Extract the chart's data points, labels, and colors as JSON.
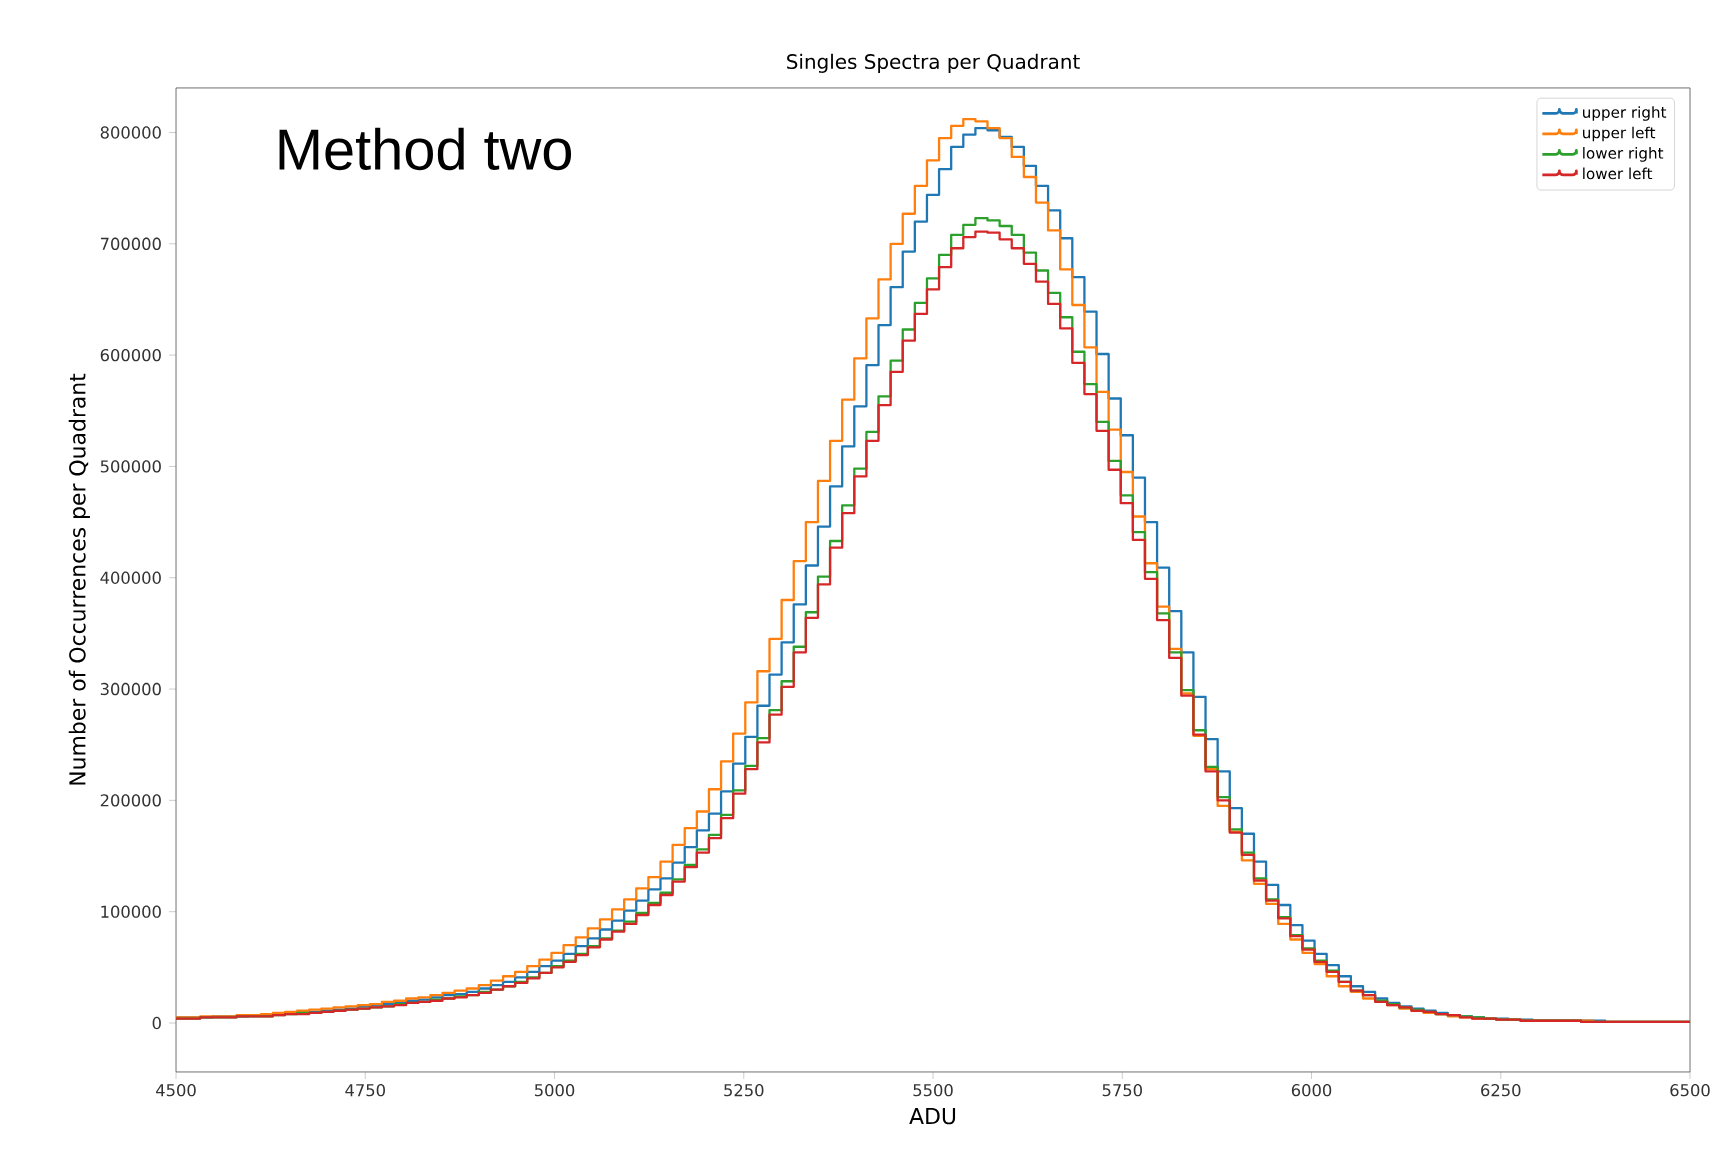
{
  "chart_data": {
    "type": "histogram",
    "title": "Singles Spectra per Quadrant",
    "xlabel": "ADU",
    "ylabel": "Number of Occurrences per Quadrant",
    "annotations": [
      "Method two"
    ],
    "xlim": [
      4500,
      6500
    ],
    "ylim": [
      -44000,
      840000
    ],
    "xticks": [
      4500,
      4750,
      5000,
      5250,
      5500,
      5750,
      6000,
      6250,
      6500
    ],
    "yticks": [
      0,
      100000,
      200000,
      300000,
      400000,
      500000,
      600000,
      700000,
      800000
    ],
    "grid": false,
    "legend": "top right",
    "bins": [
      4500,
      4516,
      4532,
      4548,
      4564,
      4580,
      4596,
      4612,
      4628,
      4644,
      4660,
      4676,
      4692,
      4708,
      4724,
      4740,
      4756,
      4772,
      4788,
      4804,
      4820,
      4836,
      4852,
      4868,
      4884,
      4900,
      4916,
      4932,
      4948,
      4964,
      4980,
      4996,
      5012,
      5028,
      5044,
      5060,
      5076,
      5092,
      5108,
      5124,
      5140,
      5156,
      5172,
      5188,
      5204,
      5220,
      5236,
      5252,
      5268,
      5284,
      5300,
      5316,
      5332,
      5348,
      5364,
      5380,
      5396,
      5412,
      5428,
      5444,
      5460,
      5476,
      5492,
      5508,
      5524,
      5540,
      5556,
      5572,
      5588,
      5604,
      5620,
      5636,
      5652,
      5668,
      5684,
      5700,
      5716,
      5732,
      5748,
      5764,
      5780,
      5796,
      5812,
      5828,
      5844,
      5860,
      5876,
      5892,
      5908,
      5924,
      5940,
      5956,
      5972,
      5988,
      6004,
      6020,
      6036,
      6052,
      6068,
      6084,
      6100,
      6116,
      6132,
      6148,
      6164,
      6180,
      6196,
      6212,
      6228,
      6244,
      6260,
      6276,
      6292,
      6308,
      6324,
      6340,
      6356,
      6372,
      6388,
      6404,
      6420,
      6436,
      6452,
      6468,
      6484,
      6500
    ],
    "series": [
      {
        "name": "upper right",
        "color": "#1f77b4",
        "values": [
          5000,
          5000,
          5000,
          6000,
          6000,
          6000,
          7000,
          7000,
          8000,
          9000,
          10000,
          10000,
          11000,
          12000,
          13000,
          15000,
          16000,
          17000,
          18000,
          20000,
          21000,
          23000,
          25000,
          26000,
          28000,
          31000,
          34000,
          37000,
          41000,
          46000,
          51000,
          56000,
          62000,
          69000,
          76000,
          84000,
          92000,
          101000,
          110000,
          120000,
          130000,
          144000,
          158000,
          173000,
          188000,
          208000,
          233000,
          257000,
          285000,
          313000,
          342000,
          376000,
          411000,
          446000,
          482000,
          518000,
          554000,
          591000,
          627000,
          661000,
          693000,
          720000,
          744000,
          767000,
          787000,
          798000,
          804000,
          802000,
          796000,
          787000,
          770000,
          752000,
          730000,
          705000,
          670000,
          639000,
          601000,
          561000,
          528000,
          490000,
          450000,
          409000,
          370000,
          333000,
          293000,
          255000,
          226000,
          193000,
          170000,
          145000,
          124000,
          106000,
          88000,
          74000,
          62000,
          52000,
          42000,
          33000,
          28000,
          22000,
          18000,
          15000,
          13000,
          11000,
          9000,
          7000,
          6000,
          5000,
          4000,
          4000,
          3000,
          3000,
          2000,
          2000,
          2000,
          2000,
          2000,
          2000,
          1000,
          1000,
          1000,
          1000,
          1000,
          1000,
          1000
        ]
      },
      {
        "name": "upper left",
        "color": "#ff7f0e",
        "values": [
          5000,
          5000,
          6000,
          6000,
          6000,
          7000,
          7000,
          8000,
          9000,
          10000,
          11000,
          12000,
          13000,
          14000,
          15000,
          16000,
          17000,
          19000,
          20000,
          22000,
          23000,
          25000,
          27000,
          29000,
          31000,
          34000,
          38000,
          42000,
          46000,
          51000,
          57000,
          63000,
          70000,
          77000,
          85000,
          93000,
          102000,
          111000,
          121000,
          131000,
          145000,
          160000,
          175000,
          190000,
          210000,
          235000,
          260000,
          288000,
          316000,
          345000,
          380000,
          415000,
          450000,
          487000,
          523000,
          560000,
          597000,
          633000,
          668000,
          700000,
          727000,
          752000,
          775000,
          795000,
          806000,
          812000,
          810000,
          804000,
          795000,
          778000,
          760000,
          737000,
          712000,
          677000,
          645000,
          607000,
          567000,
          533000,
          495000,
          455000,
          413000,
          374000,
          336000,
          296000,
          258000,
          228000,
          195000,
          172000,
          146000,
          125000,
          107000,
          89000,
          75000,
          63000,
          53000,
          42000,
          33000,
          28000,
          22000,
          19000,
          16000,
          13000,
          11000,
          9000,
          8000,
          6000,
          5000,
          4000,
          4000,
          3000,
          3000,
          2000,
          2000,
          2000,
          2000,
          2000,
          2000,
          1000,
          1000,
          1000,
          1000,
          1000,
          1000,
          1000,
          1000
        ]
      },
      {
        "name": "lower right",
        "color": "#2ca02c",
        "values": [
          4000,
          4000,
          5000,
          5000,
          5000,
          6000,
          6000,
          6000,
          7000,
          8000,
          9000,
          9000,
          10000,
          11000,
          12000,
          13000,
          14000,
          15000,
          17000,
          18000,
          19000,
          21000,
          22000,
          24000,
          25000,
          28000,
          30000,
          33000,
          37000,
          41000,
          45000,
          51000,
          56000,
          62000,
          69000,
          76000,
          83000,
          91000,
          99000,
          108000,
          117000,
          129000,
          142000,
          156000,
          169000,
          187000,
          209000,
          231000,
          256000,
          281000,
          307000,
          338000,
          369000,
          401000,
          433000,
          465000,
          498000,
          531000,
          563000,
          595000,
          623000,
          647000,
          669000,
          690000,
          708000,
          717000,
          723000,
          721000,
          716000,
          708000,
          692000,
          676000,
          656000,
          634000,
          603000,
          574000,
          540000,
          505000,
          474000,
          441000,
          405000,
          368000,
          333000,
          299000,
          263000,
          230000,
          203000,
          174000,
          153000,
          130000,
          111000,
          95000,
          79000,
          67000,
          56000,
          47000,
          37000,
          29000,
          25000,
          20000,
          17000,
          14000,
          12000,
          10000,
          8000,
          7000,
          6000,
          5000,
          4000,
          3000,
          3000,
          2000,
          2000,
          2000,
          2000,
          2000,
          1000,
          1000,
          1000,
          1000,
          1000,
          1000,
          1000,
          1000,
          1000
        ]
      },
      {
        "name": "lower left",
        "color": "#d62728",
        "values": [
          4000,
          4000,
          5000,
          5000,
          5000,
          6000,
          6000,
          6000,
          7000,
          8000,
          8000,
          9000,
          10000,
          11000,
          12000,
          13000,
          14000,
          15000,
          16000,
          18000,
          19000,
          20000,
          22000,
          23000,
          25000,
          27000,
          30000,
          33000,
          36000,
          40000,
          45000,
          50000,
          55000,
          61000,
          68000,
          75000,
          82000,
          89000,
          97000,
          106000,
          115000,
          127000,
          140000,
          153000,
          166000,
          184000,
          206000,
          228000,
          252000,
          277000,
          302000,
          333000,
          364000,
          394000,
          427000,
          458000,
          491000,
          523000,
          555000,
          585000,
          613000,
          637000,
          659000,
          679000,
          696000,
          706000,
          711000,
          710000,
          704000,
          696000,
          682000,
          666000,
          646000,
          624000,
          593000,
          565000,
          532000,
          497000,
          467000,
          434000,
          399000,
          362000,
          328000,
          294000,
          259000,
          226000,
          200000,
          171000,
          151000,
          128000,
          110000,
          94000,
          78000,
          66000,
          55000,
          46000,
          37000,
          29000,
          25000,
          19000,
          16000,
          14000,
          11000,
          10000,
          8000,
          7000,
          5000,
          4000,
          4000,
          3000,
          3000,
          2000,
          2000,
          2000,
          2000,
          2000,
          1000,
          1000,
          1000,
          1000,
          1000,
          1000,
          1000,
          1000,
          1000
        ]
      }
    ]
  }
}
